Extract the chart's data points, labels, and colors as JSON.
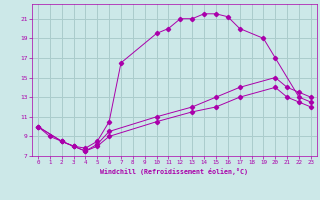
{
  "xlabel": "Windchill (Refroidissement éolien,°C)",
  "bg_color": "#cce8e8",
  "grid_color": "#aacccc",
  "line_color": "#aa00aa",
  "xlim": [
    -0.5,
    23.5
  ],
  "ylim": [
    7,
    22.5
  ],
  "xticks": [
    0,
    1,
    2,
    3,
    4,
    5,
    6,
    7,
    8,
    9,
    10,
    11,
    12,
    13,
    14,
    15,
    16,
    17,
    18,
    19,
    20,
    21,
    22,
    23
  ],
  "yticks": [
    7,
    9,
    11,
    13,
    15,
    17,
    19,
    21
  ],
  "line1_x": [
    0,
    1,
    2,
    3,
    4,
    5,
    6,
    7,
    10,
    11,
    12,
    13,
    14,
    15,
    16,
    17,
    19,
    20,
    22,
    23
  ],
  "line1_y": [
    10.0,
    9.0,
    8.5,
    8.0,
    7.8,
    8.5,
    10.5,
    16.5,
    19.5,
    20.0,
    21.0,
    21.0,
    21.5,
    21.5,
    21.2,
    20.0,
    19.0,
    17.0,
    13.0,
    12.5
  ],
  "line2_x": [
    0,
    2,
    3,
    4,
    5,
    6,
    10,
    13,
    15,
    17,
    20,
    21,
    22,
    23
  ],
  "line2_y": [
    10.0,
    8.5,
    8.0,
    7.5,
    8.2,
    9.5,
    11.0,
    12.0,
    13.0,
    14.0,
    15.0,
    14.0,
    13.5,
    13.0
  ],
  "line3_x": [
    0,
    2,
    3,
    4,
    5,
    6,
    10,
    13,
    15,
    17,
    20,
    21,
    22,
    23
  ],
  "line3_y": [
    10.0,
    8.5,
    8.0,
    7.5,
    8.0,
    9.0,
    10.5,
    11.5,
    12.0,
    13.0,
    14.0,
    13.0,
    12.5,
    12.0
  ]
}
